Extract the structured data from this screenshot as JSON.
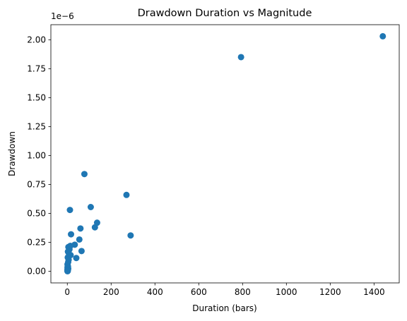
{
  "chart_data": {
    "type": "scatter",
    "title": "Drawdown Duration vs Magnitude",
    "xlabel": "Duration (bars)",
    "ylabel": "Drawdown",
    "y_offset_label": "1e−6",
    "xlim": [
      -75,
      1515
    ],
    "ylim": [
      -1e-07,
      2.13e-06
    ],
    "xticks": [
      0,
      200,
      400,
      600,
      800,
      1000,
      1200,
      1400
    ],
    "xtick_labels": [
      "0",
      "200",
      "400",
      "600",
      "800",
      "1000",
      "1200",
      "1400"
    ],
    "yticks": [
      0,
      2.5e-07,
      5e-07,
      7.5e-07,
      1e-06,
      1.25e-06,
      1.5e-06,
      1.75e-06,
      2e-06
    ],
    "ytick_labels": [
      "0.00",
      "0.25",
      "0.50",
      "0.75",
      "1.00",
      "1.25",
      "1.50",
      "1.75",
      "2.00"
    ],
    "grid": false,
    "marker_color": "#1f77b4",
    "series": [
      {
        "x": [
          1440,
          793,
          78,
          270,
          107,
          12,
          136,
          126,
          289,
          60,
          14,
          17,
          55,
          34,
          65,
          15,
          5,
          10,
          3,
          8,
          41,
          2,
          6,
          4,
          1,
          2,
          3,
          1,
          2,
          4,
          1,
          3,
          2,
          1,
          2,
          1,
          1,
          2,
          1,
          1
        ],
        "y": [
          2.03e-06,
          1.85e-06,
          8.4e-07,
          6.6e-07,
          5.55e-07,
          5.3e-07,
          4.2e-07,
          3.8e-07,
          3.1e-07,
          3.7e-07,
          2.2e-07,
          3.2e-07,
          2.75e-07,
          2.3e-07,
          1.75e-07,
          1.4e-07,
          2.1e-07,
          1.9e-07,
          1.7e-07,
          1.5e-07,
          1.15e-07,
          1.2e-07,
          1e-07,
          8e-08,
          6e-08,
          5e-08,
          4e-08,
          3.5e-08,
          3e-08,
          2.5e-08,
          2e-08,
          1.5e-08,
          1.2e-08,
          1e-08,
          8e-09,
          6e-09,
          4e-09,
          3e-09,
          2e-09,
          1e-09
        ]
      }
    ]
  }
}
